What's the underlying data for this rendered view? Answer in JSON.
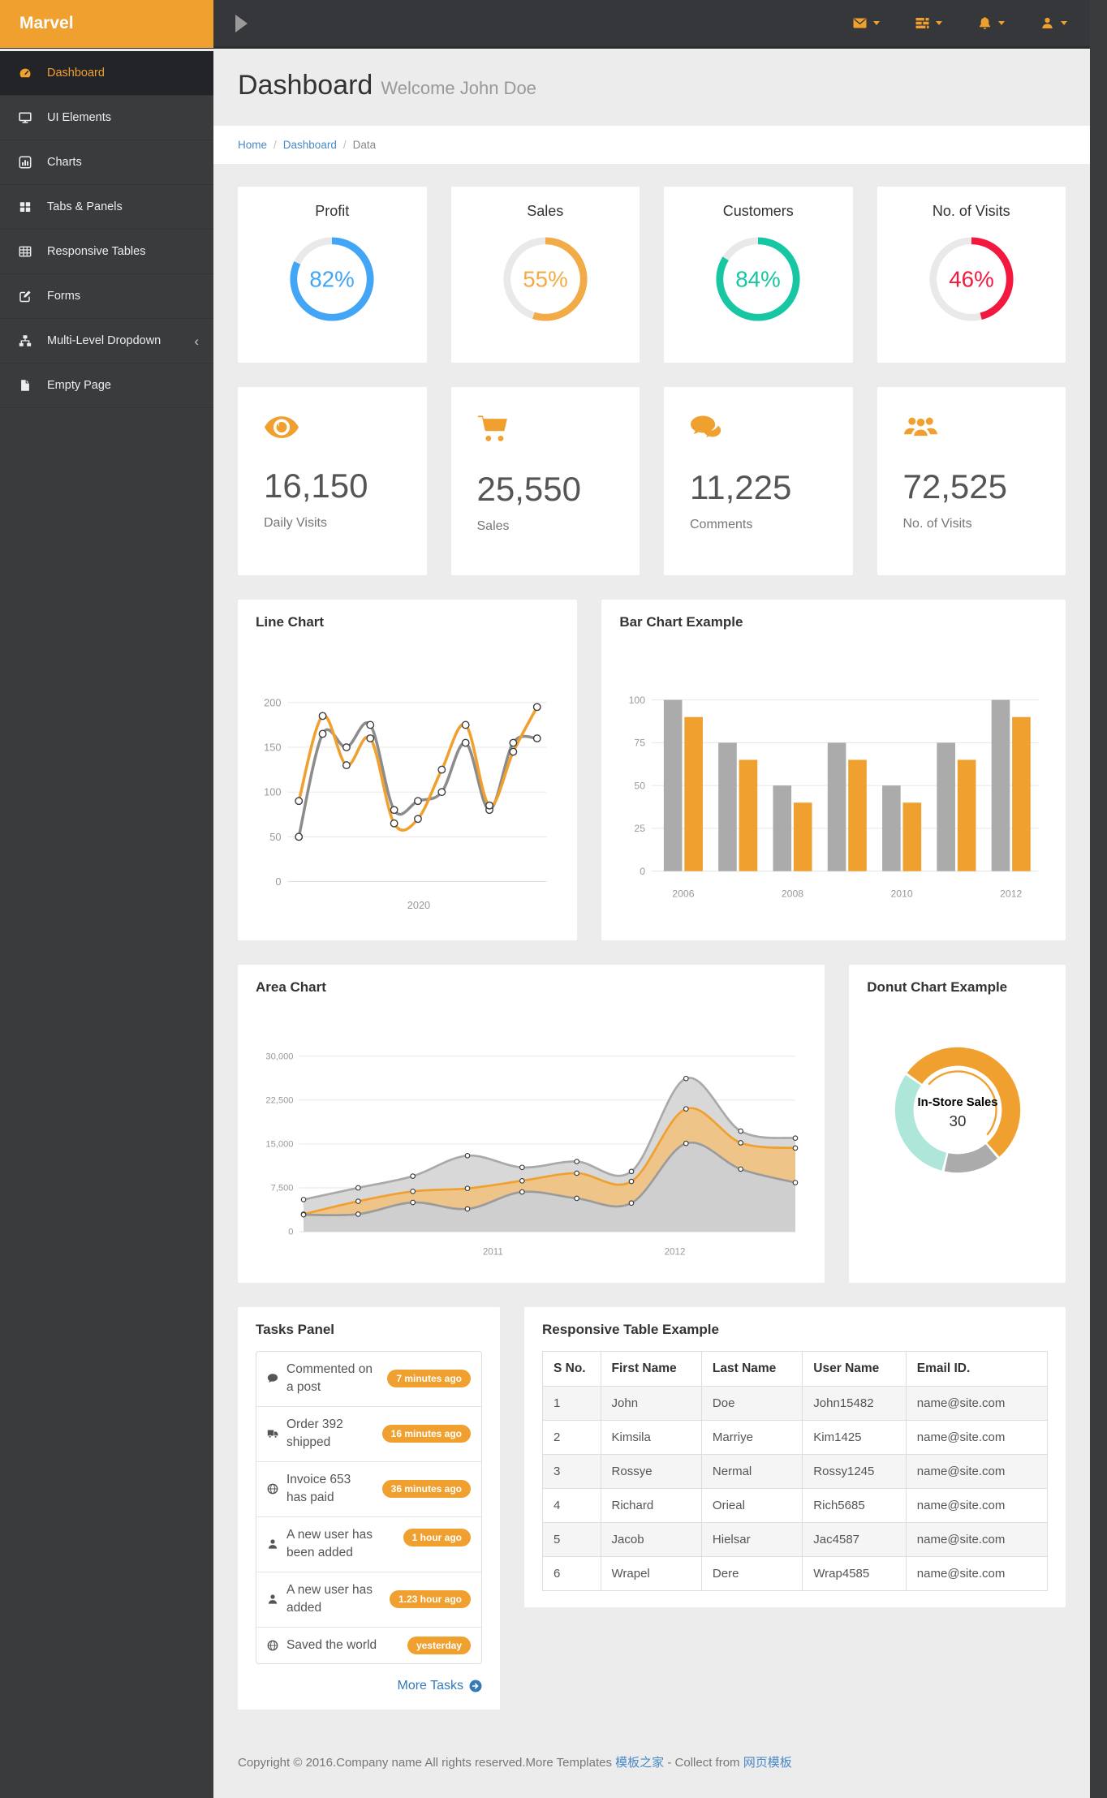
{
  "topbar": {
    "brand": "Marvel",
    "icons": [
      "envelope",
      "tasks",
      "bell",
      "user"
    ]
  },
  "sidebar": {
    "items": [
      {
        "label": "Dashboard",
        "icon": "dashboard",
        "active": true
      },
      {
        "label": "UI Elements",
        "icon": "desktop"
      },
      {
        "label": "Charts",
        "icon": "bar-chart"
      },
      {
        "label": "Tabs & Panels",
        "icon": "th-large"
      },
      {
        "label": "Responsive Tables",
        "icon": "table"
      },
      {
        "label": "Forms",
        "icon": "pencil-square"
      },
      {
        "label": "Multi-Level Dropdown",
        "icon": "sitemap",
        "chevron": "‹"
      },
      {
        "label": "Empty Page",
        "icon": "file"
      }
    ]
  },
  "header": {
    "title": "Dashboard",
    "subtitle": "Welcome John Doe",
    "separator": "/",
    "breadcrumb": [
      "Home",
      "Dashboard",
      "Data"
    ]
  },
  "knob_cards": [
    {
      "title": "Profit",
      "percent": 82,
      "color": "#42A5F5"
    },
    {
      "title": "Sales",
      "percent": 55,
      "color": "#F3AB47"
    },
    {
      "title": "Customers",
      "percent": 84,
      "color": "#17C6A3"
    },
    {
      "title": "No. of Visits",
      "percent": 46,
      "color": "#F2183E"
    }
  ],
  "stats": [
    {
      "icon": "eye",
      "value": "16,150",
      "label": "Daily Visits"
    },
    {
      "icon": "shopping-cart",
      "value": "25,550",
      "label": "Sales"
    },
    {
      "icon": "comments",
      "value": "11,225",
      "label": "Comments"
    },
    {
      "icon": "users",
      "value": "72,525",
      "label": "No. of Visits"
    }
  ],
  "chart_data": [
    {
      "type": "line",
      "title": "Line Chart",
      "x_label": "2020",
      "y_ticks": [
        0,
        50,
        100,
        150,
        200
      ],
      "y_max": 200,
      "grid": true,
      "series": [
        {
          "name": "gray",
          "color": "#8C8C8C",
          "values": [
            50,
            165,
            150,
            175,
            80,
            90,
            100,
            155,
            80,
            155,
            160
          ]
        },
        {
          "name": "orange",
          "color": "#F0A02F",
          "values": [
            90,
            185,
            130,
            160,
            65,
            70,
            125,
            175,
            85,
            145,
            195
          ]
        }
      ]
    },
    {
      "type": "bar",
      "title": "Bar Chart Example",
      "x_tick_labels": [
        "2006",
        "2008",
        "2010",
        "2012"
      ],
      "y_ticks": [
        0,
        25,
        50,
        75,
        100
      ],
      "y_max": 100,
      "grid": true,
      "series": [
        {
          "name": "gray",
          "color": "#ABABAB",
          "values": [
            100,
            75,
            50,
            75,
            50,
            75,
            100
          ]
        },
        {
          "name": "orange",
          "color": "#F0A02F",
          "values": [
            90,
            65,
            40,
            65,
            40,
            65,
            90
          ]
        }
      ]
    },
    {
      "type": "area",
      "title": "Area Chart",
      "x_tick_labels": [
        "2011",
        "2012"
      ],
      "y_ticks": [
        0,
        7500,
        15000,
        22500,
        30000
      ],
      "y_tick_labels": [
        "0",
        "7,500",
        "15,000",
        "22,500",
        "30,000"
      ],
      "y_max": 30000,
      "grid": true,
      "series": [
        {
          "name": "upper-gray",
          "stroke": "#A9A9A9",
          "fill": "#D8D8D8",
          "values": [
            5500,
            7500,
            9500,
            13000,
            11000,
            12000,
            10300,
            26200,
            17200,
            16000
          ]
        },
        {
          "name": "orange",
          "stroke": "#F0A02F",
          "fill": "#EFC489",
          "values": [
            3000,
            5200,
            6900,
            7400,
            8700,
            10000,
            8600,
            21000,
            15200,
            14300
          ]
        },
        {
          "name": "lower-gray",
          "stroke": "#9B9B9B",
          "fill": "#CFCFCF",
          "values": [
            2900,
            3000,
            5000,
            3900,
            6800,
            5700,
            4900,
            15100,
            10700,
            8400
          ]
        }
      ]
    },
    {
      "type": "donut",
      "title": "Donut Chart Example",
      "center_label": "In-Store Sales",
      "center_value": "30",
      "start_angle": 305,
      "slices": [
        {
          "label": "In-Store Sales",
          "percent": 54,
          "color": "#F0A02F",
          "selected": true
        },
        {
          "label": "",
          "percent": 15,
          "color": "#ABABAB"
        },
        {
          "label": "",
          "percent": 31,
          "color": "#AEE6DA"
        }
      ]
    }
  ],
  "tasks": {
    "title": "Tasks Panel",
    "more_label": "More Tasks",
    "items": [
      {
        "icon": "comment",
        "text": "Commented on a post",
        "badge": "7 minutes ago"
      },
      {
        "icon": "truck",
        "text": "Order 392 shipped",
        "badge": "16 minutes ago"
      },
      {
        "icon": "globe",
        "text": "Invoice 653 has paid",
        "badge": "36 minutes ago"
      },
      {
        "icon": "user",
        "text": "A new user has been added",
        "badge": "1 hour ago"
      },
      {
        "icon": "user",
        "text": "A new user has added",
        "badge": "1.23 hour ago"
      },
      {
        "icon": "globe",
        "text": "Saved the world",
        "badge": "yesterday"
      }
    ]
  },
  "table": {
    "title": "Responsive Table Example",
    "headers": [
      "S No.",
      "First Name",
      "Last Name",
      "User Name",
      "Email ID."
    ],
    "rows": [
      [
        "1",
        "John",
        "Doe",
        "John15482",
        "name@site.com"
      ],
      [
        "2",
        "Kimsila",
        "Marriye",
        "Kim1425",
        "name@site.com"
      ],
      [
        "3",
        "Rossye",
        "Nermal",
        "Rossy1245",
        "name@site.com"
      ],
      [
        "4",
        "Richard",
        "Orieal",
        "Rich5685",
        "name@site.com"
      ],
      [
        "5",
        "Jacob",
        "Hielsar",
        "Jac4587",
        "name@site.com"
      ],
      [
        "6",
        "Wrapel",
        "Dere",
        "Wrap4585",
        "name@site.com"
      ]
    ]
  },
  "footer": {
    "text1": "Copyright © 2016.Company name All rights reserved.More Templates ",
    "link1": "模板之家",
    "text2": " - Collect from ",
    "link2": "网页模板"
  },
  "colors": {
    "accent": "#F0A02F",
    "navbar": "#36373A",
    "sidebar": "#3A3B3D",
    "link_blue": "#4A89C7",
    "content_bg": "#ECECEC"
  }
}
